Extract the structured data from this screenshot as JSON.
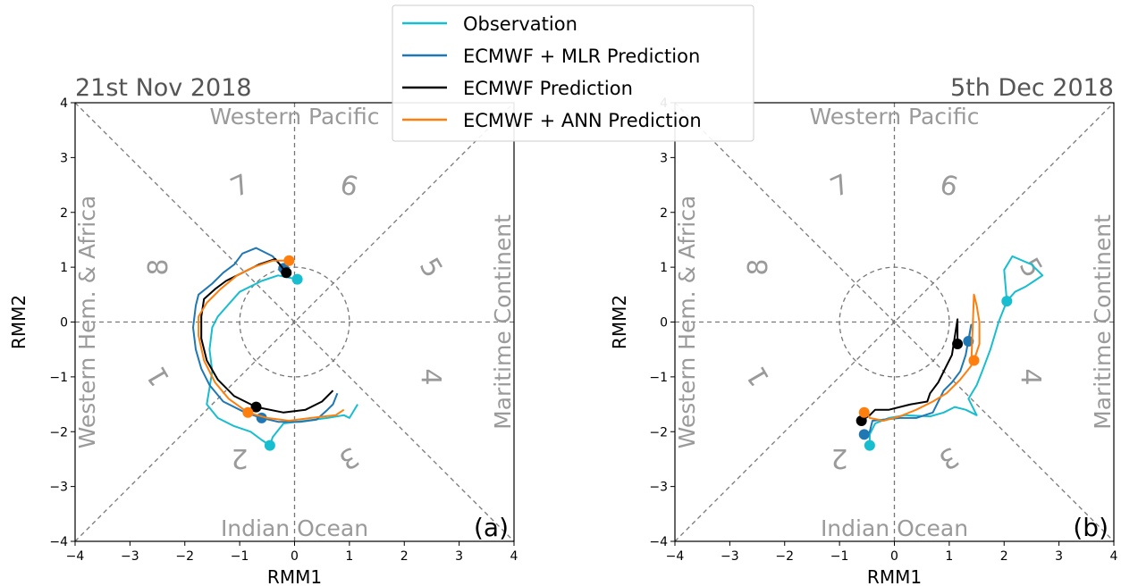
{
  "figure": {
    "legend": [
      {
        "label": "Observation",
        "color": "#17becf"
      },
      {
        "label": "ECMWF + MLR Prediction",
        "color": "#1f77b4"
      },
      {
        "label": "ECMWF Prediction",
        "color": "#000000"
      },
      {
        "label": "ECMWF + ANN Prediction",
        "color": "#ff7f0e"
      }
    ],
    "region_labels": {
      "top": "Western Pacific",
      "bottom": "Indian Ocean",
      "left": "Western Hem. & Africa",
      "right": "Maritime Continent"
    },
    "phase_labels": [
      "1",
      "2",
      "3",
      "4",
      "5",
      "6",
      "7",
      "8"
    ]
  },
  "chart_data": [
    {
      "type": "line",
      "title": "21st Nov 2018",
      "panel_label": "(a)",
      "xlabel": "RMM1",
      "ylabel": "RMM2",
      "xlim": [
        -4,
        4
      ],
      "ylim": [
        -4,
        4
      ],
      "xticks": [
        "−4",
        "−3",
        "−2",
        "−1",
        "0",
        "1",
        "2",
        "3",
        "4"
      ],
      "yticks": [
        "−4",
        "−3",
        "−2",
        "−1",
        "0",
        "1",
        "2",
        "3",
        "4"
      ],
      "unit_circle_radius": 1,
      "grid": false,
      "legend_position": "top-center",
      "series": [
        {
          "name": "Observation",
          "color": "#17becf",
          "points": [
            [
              0.05,
              0.78
            ],
            [
              -0.3,
              0.85
            ],
            [
              -0.6,
              0.75
            ],
            [
              -1.0,
              0.55
            ],
            [
              -1.4,
              0.1
            ],
            [
              -1.5,
              -0.1
            ],
            [
              -1.55,
              -0.5
            ],
            [
              -1.5,
              -0.9
            ],
            [
              -1.55,
              -1.2
            ],
            [
              -1.6,
              -1.5
            ],
            [
              -1.4,
              -1.75
            ],
            [
              -1.1,
              -1.9
            ],
            [
              -0.8,
              -2.0
            ],
            [
              -0.6,
              -2.15
            ],
            [
              -0.45,
              -2.25
            ],
            [
              -0.4,
              -2.1
            ],
            [
              -0.2,
              -1.85
            ],
            [
              0.2,
              -1.8
            ],
            [
              0.6,
              -1.75
            ],
            [
              0.9,
              -1.7
            ],
            [
              1.0,
              -1.75
            ],
            [
              1.15,
              -1.5
            ]
          ],
          "start": [
            0.05,
            0.78
          ],
          "end_marker": [
            -0.45,
            -2.25
          ]
        },
        {
          "name": "ECMWF + MLR Prediction",
          "color": "#1f77b4",
          "points": [
            [
              -0.2,
              0.98
            ],
            [
              -0.4,
              1.2
            ],
            [
              -0.7,
              1.35
            ],
            [
              -0.95,
              1.25
            ],
            [
              -1.1,
              1.05
            ],
            [
              -1.3,
              0.9
            ],
            [
              -1.5,
              0.7
            ],
            [
              -1.75,
              0.5
            ],
            [
              -1.8,
              0.3
            ],
            [
              -1.85,
              -0.1
            ],
            [
              -1.8,
              -0.5
            ],
            [
              -1.7,
              -0.85
            ],
            [
              -1.55,
              -1.15
            ],
            [
              -1.3,
              -1.45
            ],
            [
              -0.9,
              -1.65
            ],
            [
              -0.6,
              -1.75
            ],
            [
              -0.3,
              -1.82
            ],
            [
              0.1,
              -1.82
            ],
            [
              0.4,
              -1.78
            ],
            [
              0.6,
              -1.6
            ],
            [
              0.7,
              -1.5
            ],
            [
              0.78,
              -1.3
            ]
          ],
          "start": [
            -0.2,
            0.98
          ],
          "end_marker": [
            -0.6,
            -1.75
          ]
        },
        {
          "name": "ECMWF Prediction",
          "color": "#000000",
          "points": [
            [
              -0.15,
              0.9
            ],
            [
              -0.35,
              1.15
            ],
            [
              -0.65,
              1.05
            ],
            [
              -0.95,
              0.9
            ],
            [
              -1.25,
              0.75
            ],
            [
              -1.45,
              0.6
            ],
            [
              -1.65,
              0.42
            ],
            [
              -1.7,
              0.1
            ],
            [
              -1.7,
              -0.3
            ],
            [
              -1.6,
              -0.7
            ],
            [
              -1.4,
              -1.05
            ],
            [
              -1.1,
              -1.35
            ],
            [
              -0.7,
              -1.55
            ],
            [
              -0.2,
              -1.65
            ],
            [
              0.2,
              -1.6
            ],
            [
              0.5,
              -1.45
            ],
            [
              0.7,
              -1.25
            ]
          ],
          "start": [
            -0.15,
            0.9
          ],
          "end_marker": [
            -0.7,
            -1.55
          ]
        },
        {
          "name": "ECMWF + ANN Prediction",
          "color": "#ff7f0e",
          "points": [
            [
              -0.1,
              1.12
            ],
            [
              -0.4,
              1.12
            ],
            [
              -0.75,
              1.0
            ],
            [
              -1.05,
              0.85
            ],
            [
              -1.35,
              0.6
            ],
            [
              -1.6,
              0.35
            ],
            [
              -1.75,
              0.1
            ],
            [
              -1.75,
              -0.25
            ],
            [
              -1.65,
              -0.7
            ],
            [
              -1.45,
              -1.1
            ],
            [
              -1.2,
              -1.4
            ],
            [
              -0.85,
              -1.65
            ],
            [
              -0.5,
              -1.75
            ],
            [
              -0.1,
              -1.8
            ],
            [
              0.3,
              -1.75
            ],
            [
              0.55,
              -1.72
            ],
            [
              0.75,
              -1.7
            ],
            [
              0.9,
              -1.6
            ]
          ],
          "start": [
            -0.1,
            1.12
          ],
          "end_marker": [
            -0.85,
            -1.65
          ]
        }
      ]
    },
    {
      "type": "line",
      "title": "5th Dec 2018",
      "panel_label": "(b)",
      "xlabel": "RMM1",
      "ylabel": "RMM2",
      "xlim": [
        -4,
        4
      ],
      "ylim": [
        -4,
        4
      ],
      "xticks": [
        "−4",
        "−3",
        "−2",
        "−1",
        "0",
        "1",
        "2",
        "3",
        "4"
      ],
      "yticks": [
        "−4",
        "−3",
        "−2",
        "−1",
        "0",
        "1",
        "2",
        "3",
        "4"
      ],
      "unit_circle_radius": 1,
      "grid": false,
      "series": [
        {
          "name": "Observation",
          "color": "#17becf",
          "points": [
            [
              2.05,
              0.38
            ],
            [
              2.2,
              0.55
            ],
            [
              2.4,
              0.65
            ],
            [
              2.55,
              0.75
            ],
            [
              2.7,
              0.85
            ],
            [
              2.5,
              1.05
            ],
            [
              2.15,
              1.2
            ],
            [
              2.0,
              0.95
            ],
            [
              2.05,
              0.38
            ],
            [
              1.9,
              0.0
            ],
            [
              1.75,
              -0.5
            ],
            [
              1.6,
              -0.9
            ],
            [
              1.5,
              -1.15
            ],
            [
              1.35,
              -1.4
            ],
            [
              1.5,
              -1.7
            ],
            [
              1.3,
              -1.6
            ],
            [
              1.1,
              -1.55
            ],
            [
              0.9,
              -1.65
            ],
            [
              0.65,
              -1.72
            ],
            [
              0.2,
              -1.7
            ],
            [
              -0.1,
              -1.75
            ],
            [
              -0.35,
              -1.85
            ],
            [
              -0.45,
              -2.05
            ],
            [
              -0.45,
              -2.25
            ]
          ],
          "start": [
            2.05,
            0.38
          ],
          "end_marker": [
            -0.45,
            -2.25
          ]
        },
        {
          "name": "ECMWF + MLR Prediction",
          "color": "#1f77b4",
          "points": [
            [
              1.35,
              -0.35
            ],
            [
              1.4,
              -0.05
            ],
            [
              1.3,
              -0.6
            ],
            [
              1.2,
              -0.9
            ],
            [
              1.05,
              -1.1
            ],
            [
              0.9,
              -1.25
            ],
            [
              0.8,
              -1.45
            ],
            [
              0.7,
              -1.65
            ],
            [
              0.4,
              -1.75
            ],
            [
              0.1,
              -1.75
            ],
            [
              -0.2,
              -1.78
            ],
            [
              -0.4,
              -1.8
            ],
            [
              -0.45,
              -2.0
            ],
            [
              -0.55,
              -2.1
            ]
          ],
          "start": [
            1.35,
            -0.35
          ],
          "end_marker": [
            -0.55,
            -2.05
          ]
        },
        {
          "name": "ECMWF Prediction",
          "color": "#000000",
          "points": [
            [
              1.15,
              -0.4
            ],
            [
              1.15,
              0.05
            ],
            [
              1.05,
              -0.6
            ],
            [
              0.9,
              -0.9
            ],
            [
              0.8,
              -1.1
            ],
            [
              0.65,
              -1.3
            ],
            [
              0.6,
              -1.45
            ],
            [
              0.3,
              -1.5
            ],
            [
              -0.1,
              -1.6
            ],
            [
              -0.35,
              -1.6
            ],
            [
              -0.45,
              -1.7
            ],
            [
              -0.6,
              -1.8
            ]
          ],
          "start": [
            1.15,
            -0.4
          ],
          "end_marker": [
            -0.6,
            -1.8
          ]
        },
        {
          "name": "ECMWF + ANN Prediction",
          "color": "#ff7f0e",
          "points": [
            [
              1.45,
              -0.7
            ],
            [
              1.55,
              -0.4
            ],
            [
              1.55,
              0.0
            ],
            [
              1.5,
              0.3
            ],
            [
              1.45,
              0.5
            ],
            [
              1.4,
              -0.8
            ],
            [
              1.2,
              -1.05
            ],
            [
              0.95,
              -1.3
            ],
            [
              0.7,
              -1.45
            ],
            [
              0.4,
              -1.6
            ],
            [
              0.1,
              -1.72
            ],
            [
              -0.2,
              -1.8
            ],
            [
              -0.45,
              -1.75
            ],
            [
              -0.5,
              -1.65
            ]
          ],
          "start": [
            1.45,
            -0.7
          ],
          "end_marker": [
            -0.55,
            -1.65
          ]
        }
      ]
    }
  ]
}
